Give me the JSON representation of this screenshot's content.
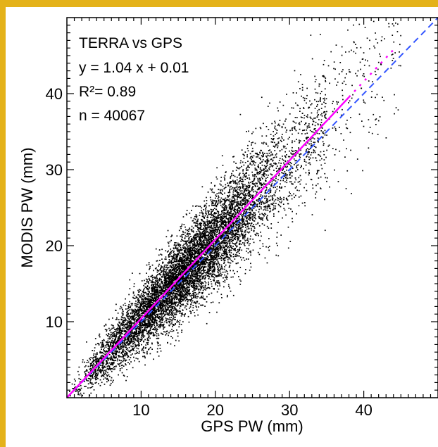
{
  "chart_data": {
    "type": "scatter",
    "xlabel": "GPS PW (mm)",
    "ylabel": "MODIS PW (mm)",
    "xlim": [
      0,
      50
    ],
    "ylim": [
      0,
      50
    ],
    "x_ticks": [
      10,
      20,
      30,
      40
    ],
    "y_ticks": [
      10,
      20,
      30,
      40
    ],
    "grid": false,
    "annotations": {
      "title": "TERRA vs GPS",
      "equation": "y   = 1.04 x + 0.01",
      "r2": "R²= 0.89",
      "n": "n   = 40067"
    },
    "regression": {
      "slope": 1.04,
      "intercept": 0.01,
      "r2": 0.89,
      "n": 40067
    },
    "one_to_one": {
      "slope": 1.0,
      "intercept": 0.0
    },
    "point_cloud": {
      "count_drawn": 9000,
      "center_ratio": 1.04,
      "x_range": [
        0,
        45
      ],
      "dense_center": 16
    },
    "colors": {
      "points": "#000000",
      "fit_line": "#FF00FF",
      "one_to_one_line": "#3355FF",
      "border": "#E4B21A"
    }
  }
}
